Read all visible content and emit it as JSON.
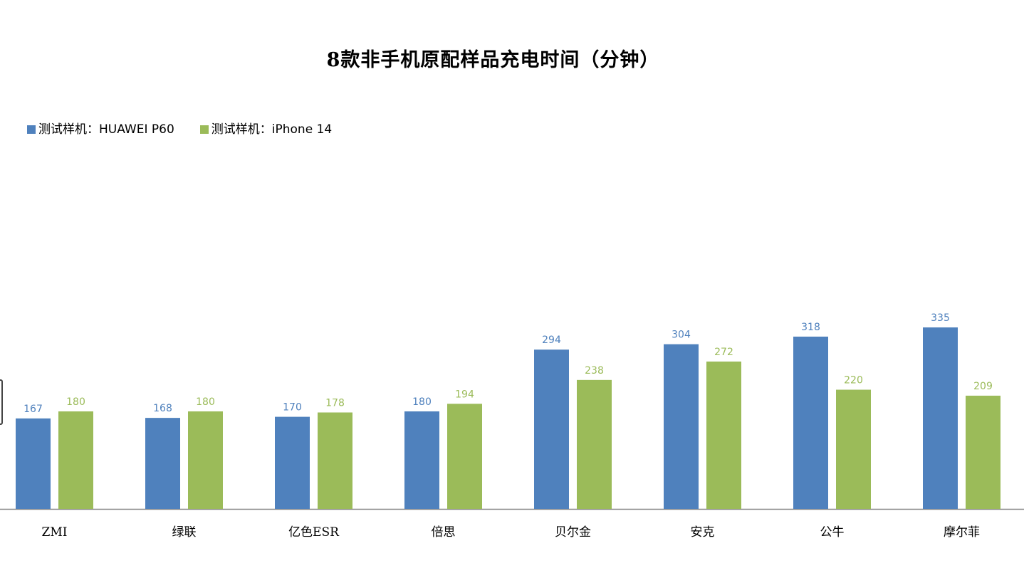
{
  "chart_data": {
    "type": "bar",
    "title": "8款非手机原配样品充电时间（分钟）",
    "categories": [
      "ZMI",
      "绿联",
      "亿色ESR",
      "倍思",
      "贝尔金",
      "安克",
      "公牛",
      "摩尔菲"
    ],
    "series": [
      {
        "name": "测试样机：HUAWEI P60",
        "color": "#4F81BD",
        "label_color": "#4F81BD",
        "values": [
          167,
          168,
          170,
          180,
          294,
          304,
          318,
          335
        ]
      },
      {
        "name": "测试样机：iPhone 14",
        "color": "#9BBB59",
        "label_color": "#9BBB59",
        "values": [
          180,
          180,
          178,
          194,
          238,
          272,
          220,
          209
        ]
      }
    ],
    "legend_position": "top-left",
    "grid": false,
    "ylim": [
      0,
      335
    ]
  }
}
